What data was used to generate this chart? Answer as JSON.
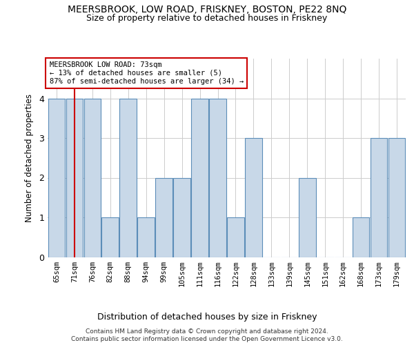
{
  "title1": "MEERSBROOK, LOW ROAD, FRISKNEY, BOSTON, PE22 8NQ",
  "title2": "Size of property relative to detached houses in Friskney",
  "xlabel": "Distribution of detached houses by size in Friskney",
  "ylabel": "Number of detached properties",
  "categories": [
    "65sqm",
    "71sqm",
    "76sqm",
    "82sqm",
    "88sqm",
    "94sqm",
    "99sqm",
    "105sqm",
    "111sqm",
    "116sqm",
    "122sqm",
    "128sqm",
    "133sqm",
    "139sqm",
    "145sqm",
    "151sqm",
    "162sqm",
    "168sqm",
    "173sqm",
    "179sqm"
  ],
  "values": [
    4,
    4,
    4,
    1,
    4,
    1,
    2,
    2,
    4,
    4,
    1,
    3,
    0,
    0,
    2,
    0,
    0,
    1,
    3,
    3
  ],
  "bar_color": "#c8d8e8",
  "bar_edge_color": "#5b8db8",
  "highlight_index": 1,
  "highlight_line_color": "#cc0000",
  "annotation_text": "MEERSBROOK LOW ROAD: 73sqm\n← 13% of detached houses are smaller (5)\n87% of semi-detached houses are larger (34) →",
  "annotation_box_edge": "#cc0000",
  "footer1": "Contains HM Land Registry data © Crown copyright and database right 2024.",
  "footer2": "Contains public sector information licensed under the Open Government Licence v3.0.",
  "ylim": [
    0,
    5
  ],
  "yticks": [
    0,
    1,
    2,
    3,
    4
  ],
  "background_color": "#ffffff",
  "grid_color": "#cccccc"
}
